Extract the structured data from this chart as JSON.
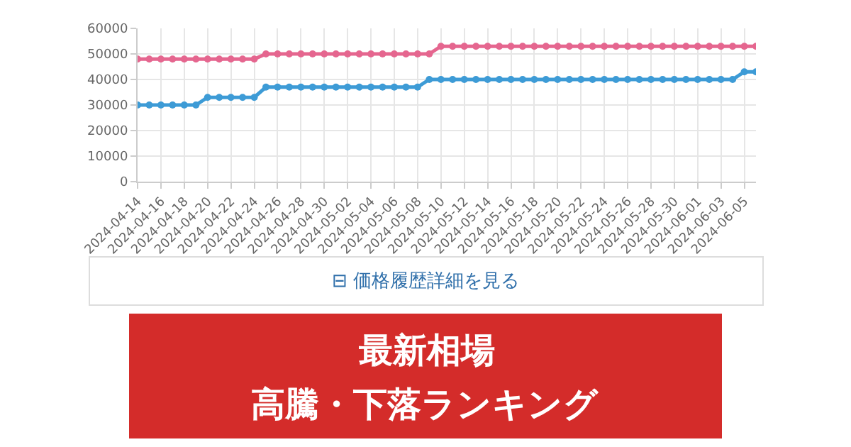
{
  "chart_data": {
    "type": "line",
    "x": [
      "2024-04-14",
      "2024-04-15",
      "2024-04-16",
      "2024-04-17",
      "2024-04-18",
      "2024-04-19",
      "2024-04-20",
      "2024-04-21",
      "2024-04-22",
      "2024-04-23",
      "2024-04-24",
      "2024-04-25",
      "2024-04-26",
      "2024-04-27",
      "2024-04-28",
      "2024-04-29",
      "2024-04-30",
      "2024-05-01",
      "2024-05-02",
      "2024-05-03",
      "2024-05-04",
      "2024-05-05",
      "2024-05-06",
      "2024-05-07",
      "2024-05-08",
      "2024-05-09",
      "2024-05-10",
      "2024-05-11",
      "2024-05-12",
      "2024-05-13",
      "2024-05-14",
      "2024-05-15",
      "2024-05-16",
      "2024-05-17",
      "2024-05-18",
      "2024-05-19",
      "2024-05-20",
      "2024-05-21",
      "2024-05-22",
      "2024-05-23",
      "2024-05-24",
      "2024-05-25",
      "2024-05-26",
      "2024-05-27",
      "2024-05-28",
      "2024-05-29",
      "2024-05-30",
      "2024-05-31",
      "2024-06-01",
      "2024-06-02",
      "2024-06-03",
      "2024-06-04",
      "2024-06-05",
      "2024-06-06"
    ],
    "series": [
      {
        "color": "#e5668f",
        "values": [
          48000,
          48000,
          48000,
          48000,
          48000,
          48000,
          48000,
          48000,
          48000,
          48000,
          48000,
          50000,
          50000,
          50000,
          50000,
          50000,
          50000,
          50000,
          50000,
          50000,
          50000,
          50000,
          50000,
          50000,
          50000,
          50000,
          53000,
          53000,
          53000,
          53000,
          53000,
          53000,
          53000,
          53000,
          53000,
          53000,
          53000,
          53000,
          53000,
          53000,
          53000,
          53000,
          53000,
          53000,
          53000,
          53000,
          53000,
          53000,
          53000,
          53000,
          53000,
          53000,
          53000,
          53000
        ]
      },
      {
        "color": "#3d9bd6",
        "values": [
          30000,
          30000,
          30000,
          30000,
          30000,
          30000,
          33000,
          33000,
          33000,
          33000,
          33000,
          37000,
          37000,
          37000,
          37000,
          37000,
          37000,
          37000,
          37000,
          37000,
          37000,
          37000,
          37000,
          37000,
          37000,
          40000,
          40000,
          40000,
          40000,
          40000,
          40000,
          40000,
          40000,
          40000,
          40000,
          40000,
          40000,
          40000,
          40000,
          40000,
          40000,
          40000,
          40000,
          40000,
          40000,
          40000,
          40000,
          40000,
          40000,
          40000,
          40000,
          40000,
          43000,
          43000
        ]
      }
    ],
    "xlim": [
      "2024-04-14",
      "2024-06-06"
    ],
    "xticks": [
      "2024-04-14",
      "2024-04-16",
      "2024-04-18",
      "2024-04-20",
      "2024-04-22",
      "2024-04-24",
      "2024-04-26",
      "2024-04-28",
      "2024-04-30",
      "2024-05-02",
      "2024-05-04",
      "2024-05-06",
      "2024-05-08",
      "2024-05-10",
      "2024-05-12",
      "2024-05-14",
      "2024-05-16",
      "2024-05-18",
      "2024-05-20",
      "2024-05-22",
      "2024-05-24",
      "2024-05-26",
      "2024-05-28",
      "2024-05-30",
      "2024-06-01",
      "2024-06-03",
      "2024-06-05"
    ],
    "ylim": [
      0,
      60000
    ],
    "yticks": [
      0,
      10000,
      20000,
      30000,
      40000,
      50000,
      60000
    ],
    "grid": true,
    "marker": "circle",
    "line_style": "solid",
    "annotations": [
      "⊟ 価格履歴詳細を見る",
      "最新相場",
      "高騰・下落ランキング"
    ]
  }
}
